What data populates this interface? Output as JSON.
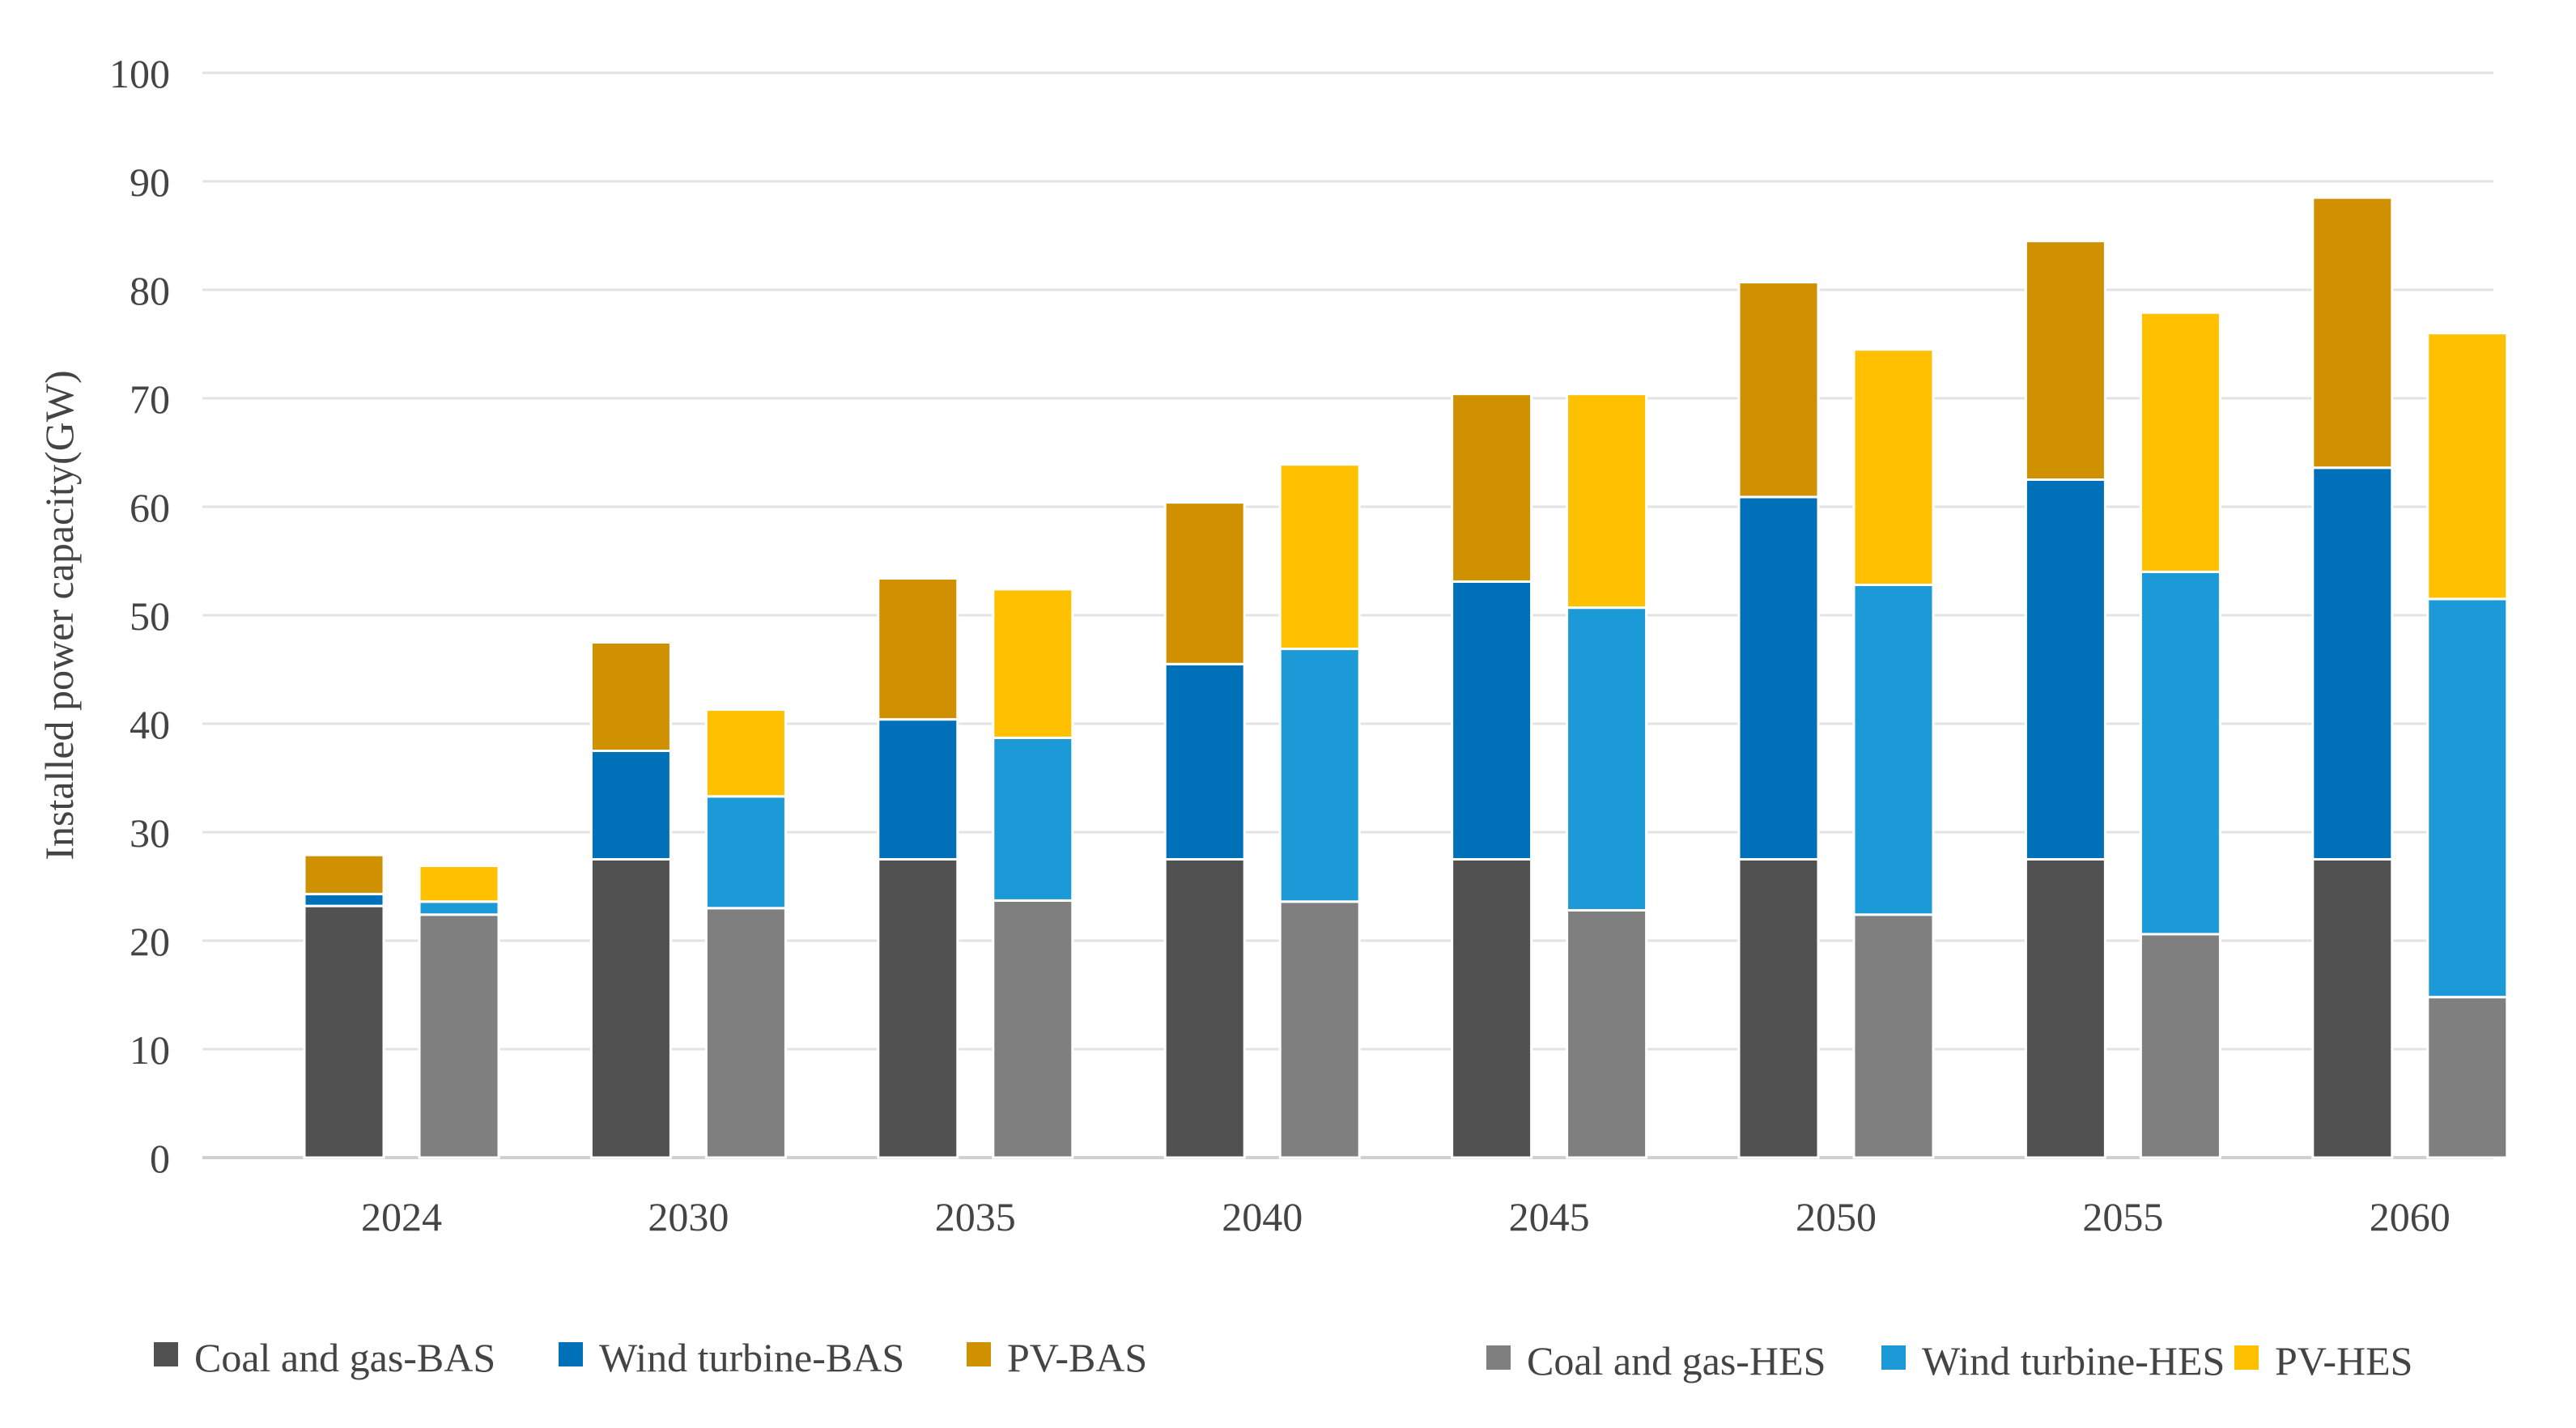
{
  "chart_data": {
    "type": "bar",
    "stacked": true,
    "title": "",
    "xlabel": "",
    "ylabel": "Installed power capacity(GW)",
    "ylim": [
      0,
      100
    ],
    "yticks": [
      0,
      10,
      20,
      30,
      40,
      50,
      60,
      70,
      80,
      90,
      100
    ],
    "grid": true,
    "legend_position": "bottom",
    "categories": [
      "2024",
      "2030",
      "2035",
      "2040",
      "2045",
      "2050",
      "2055",
      "2060"
    ],
    "groups": [
      {
        "name": "BAS",
        "series": [
          {
            "name": "Coal and gas-BAS",
            "color": "#515151",
            "values": [
              23.2,
              27.5,
              27.5,
              27.5,
              27.5,
              27.5,
              27.5,
              27.5
            ]
          },
          {
            "name": "Wind turbine-BAS",
            "color": "#0070B8",
            "values": [
              1.1,
              10.0,
              12.9,
              18.0,
              25.6,
              33.4,
              35.0,
              36.1
            ]
          },
          {
            "name": "PV-BAS",
            "color": "#CF9100",
            "values": [
              3.6,
              10.0,
              13.0,
              14.9,
              17.3,
              19.8,
              22.0,
              24.9
            ]
          }
        ]
      },
      {
        "name": "HES",
        "series": [
          {
            "name": "Coal and gas-HES",
            "color": "#7F7F7F",
            "values": [
              22.4,
              23.0,
              23.7,
              23.6,
              22.8,
              22.4,
              20.6,
              14.8
            ]
          },
          {
            "name": "Wind turbine-HES",
            "color": "#1B9AD7",
            "values": [
              1.2,
              10.3,
              15.0,
              23.3,
              27.9,
              30.4,
              33.4,
              36.7
            ]
          },
          {
            "name": "PV-HES",
            "color": "#FFC000",
            "values": [
              3.3,
              8.0,
              13.7,
              17.0,
              19.7,
              21.7,
              23.9,
              24.5
            ]
          }
        ]
      }
    ]
  }
}
